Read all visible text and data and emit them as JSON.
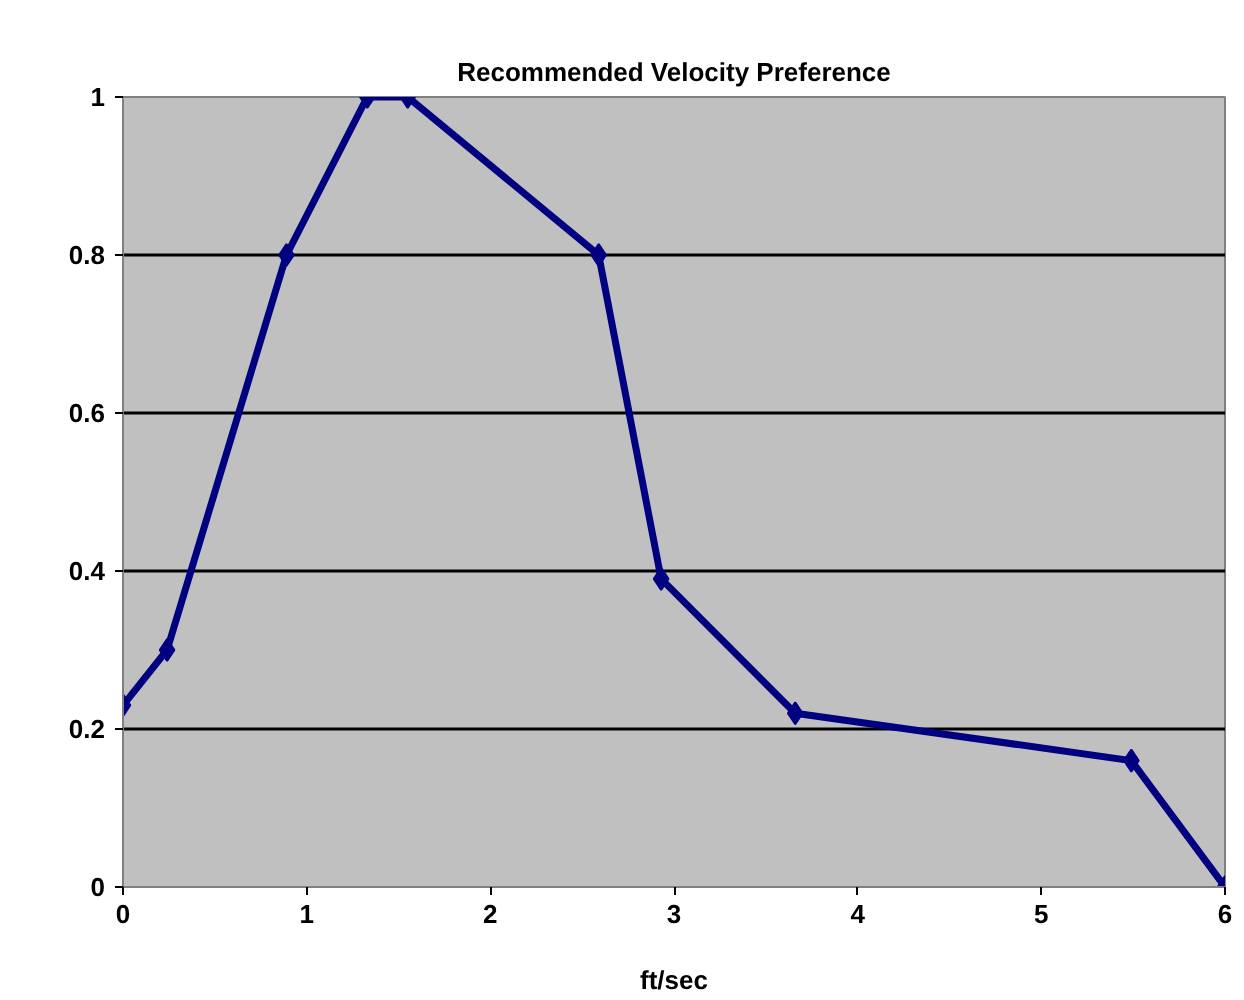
{
  "chart_data": {
    "type": "line",
    "title": "Recommended Velocity Preference",
    "xlabel": "ft/sec",
    "x": [
      0,
      0.24,
      0.89,
      1.33,
      1.55,
      2.59,
      2.93,
      3.66,
      5.49,
      6
    ],
    "series": [
      {
        "color": "#000080",
        "values": [
          0.23,
          0.3,
          0.8,
          1.0,
          1.0,
          0.8,
          0.39,
          0.22,
          0.16,
          0
        ]
      }
    ],
    "xlim": [
      0,
      6
    ],
    "xticks": [
      0,
      1,
      2,
      3,
      4,
      5,
      6
    ],
    "ylim": [
      0,
      1
    ],
    "yticks": [
      0,
      {
        "value": 0.2,
        "label": "0.2"
      },
      {
        "value": 0.4,
        "label": "0.4"
      },
      {
        "value": 0.6,
        "label": "0.6"
      },
      {
        "value": 0.8,
        "label": "0.8"
      },
      1
    ],
    "grid": "y",
    "marker": "diamond",
    "line_style": "solid"
  }
}
